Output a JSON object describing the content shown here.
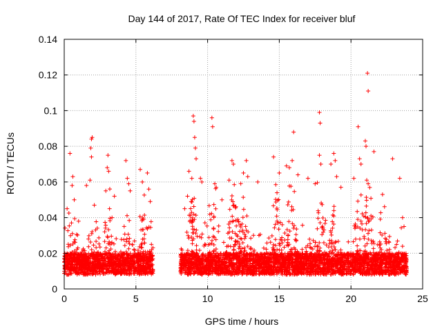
{
  "chart_data": {
    "type": "scatter",
    "title": "Day 144 of 2017, Rate Of TEC Index for receiver bluf",
    "xlabel": "GPS time / hours",
    "ylabel": "ROTI / TECUs",
    "xlim": [
      0,
      25
    ],
    "ylim": [
      0,
      0.14
    ],
    "xticks": [
      0,
      5,
      10,
      15,
      20,
      25
    ],
    "yticks": [
      0,
      0.02,
      0.04,
      0.06,
      0.08,
      0.1,
      0.12,
      0.14
    ],
    "xtick_labels": [
      "0",
      "5",
      "10",
      "15",
      "20",
      "25"
    ],
    "ytick_labels": [
      "0",
      "0.02",
      "0.04",
      "0.06",
      "0.08",
      "0.1",
      "0.12",
      "0.14"
    ],
    "grid": true,
    "marker": "+",
    "marker_color": "#ff0000",
    "data_gap_hours": [
      6.2,
      8.1
    ],
    "series": [
      {
        "name": "ROTI",
        "points": [
          [
            0.4,
            0.076
          ],
          [
            0.6,
            0.063
          ],
          [
            0.55,
            0.058
          ],
          [
            0.7,
            0.05
          ],
          [
            0.2,
            0.045
          ],
          [
            1.0,
            0.038
          ],
          [
            1.55,
            0.058
          ],
          [
            1.8,
            0.061
          ],
          [
            1.85,
            0.079
          ],
          [
            1.9,
            0.084
          ],
          [
            1.95,
            0.085
          ],
          [
            1.9,
            0.074
          ],
          [
            2.1,
            0.047
          ],
          [
            3.05,
            0.075
          ],
          [
            3.0,
            0.068
          ],
          [
            3.1,
            0.066
          ],
          [
            2.9,
            0.055
          ],
          [
            3.5,
            0.052
          ],
          [
            4.3,
            0.072
          ],
          [
            4.4,
            0.062
          ],
          [
            4.5,
            0.059
          ],
          [
            4.6,
            0.055
          ],
          [
            5.3,
            0.067
          ],
          [
            5.45,
            0.06
          ],
          [
            5.8,
            0.065
          ],
          [
            5.9,
            0.056
          ],
          [
            6.0,
            0.049
          ],
          [
            8.4,
            0.045
          ],
          [
            8.6,
            0.052
          ],
          [
            8.7,
            0.066
          ],
          [
            8.9,
            0.062
          ],
          [
            9.0,
            0.097
          ],
          [
            9.05,
            0.094
          ],
          [
            9.1,
            0.085
          ],
          [
            9.15,
            0.079
          ],
          [
            9.2,
            0.073
          ],
          [
            9.5,
            0.062
          ],
          [
            9.6,
            0.06
          ],
          [
            10.3,
            0.096
          ],
          [
            10.35,
            0.091
          ],
          [
            10.5,
            0.059
          ],
          [
            10.6,
            0.057
          ],
          [
            11.0,
            0.05
          ],
          [
            11.7,
            0.072
          ],
          [
            11.8,
            0.07
          ],
          [
            11.5,
            0.061
          ],
          [
            12.5,
            0.065
          ],
          [
            12.7,
            0.072
          ],
          [
            12.8,
            0.063
          ],
          [
            13.5,
            0.06
          ],
          [
            14.6,
            0.074
          ],
          [
            15.0,
            0.065
          ],
          [
            15.5,
            0.069
          ],
          [
            15.7,
            0.068
          ],
          [
            15.9,
            0.072
          ],
          [
            16.0,
            0.088
          ],
          [
            16.3,
            0.064
          ],
          [
            17.0,
            0.062
          ],
          [
            17.5,
            0.059
          ],
          [
            17.8,
            0.099
          ],
          [
            17.85,
            0.093
          ],
          [
            17.8,
            0.075
          ],
          [
            17.9,
            0.07
          ],
          [
            18.6,
            0.07
          ],
          [
            18.8,
            0.076
          ],
          [
            18.9,
            0.072
          ],
          [
            19.0,
            0.063
          ],
          [
            19.3,
            0.057
          ],
          [
            20.2,
            0.062
          ],
          [
            20.5,
            0.091
          ],
          [
            20.6,
            0.073
          ],
          [
            20.7,
            0.07
          ],
          [
            21.0,
            0.083
          ],
          [
            21.05,
            0.08
          ],
          [
            21.1,
            0.061
          ],
          [
            21.15,
            0.121
          ],
          [
            21.2,
            0.111
          ],
          [
            21.2,
            0.059
          ],
          [
            21.6,
            0.077
          ],
          [
            22.2,
            0.053
          ],
          [
            22.9,
            0.073
          ],
          [
            23.4,
            0.062
          ],
          [
            23.6,
            0.04
          ],
          [
            23.7,
            0.035
          ]
        ]
      }
    ]
  }
}
